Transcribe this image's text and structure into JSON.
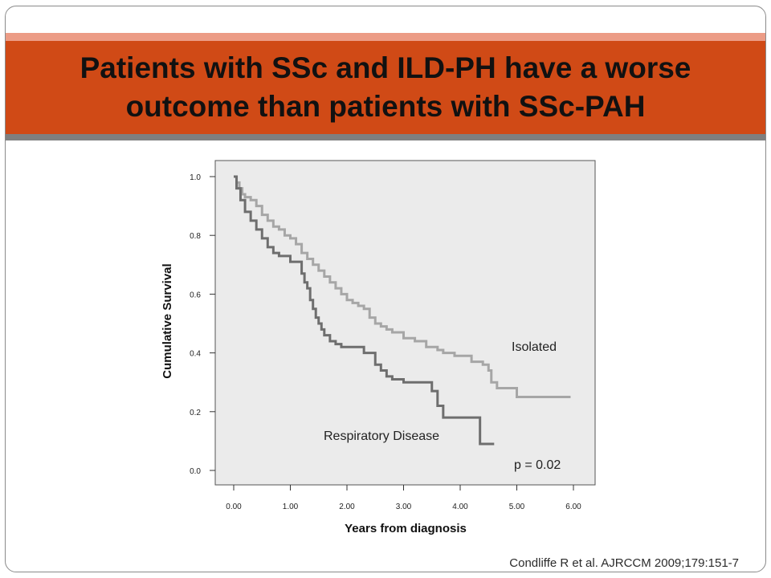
{
  "slide": {
    "title": "Patients with SSc and ILD-PH have a worse outcome than patients with SSc-PAH",
    "citation": "Condliffe R et al. AJRCCM 2009;179:151-7"
  },
  "colors": {
    "title_band": "#d04a16",
    "title_band_light": "#ec9c86",
    "separator": "#7f7f7f",
    "plot_background": "#ebebeb",
    "isolated_line": "#a6a6a6",
    "respiratory_line": "#6e6e6e"
  },
  "chart_data": {
    "type": "line",
    "step": true,
    "xlabel": "Years from diagnosis",
    "ylabel": "Cumulative Survival",
    "xlim": [
      0,
      6
    ],
    "ylim": [
      0,
      1
    ],
    "x_ticks": [
      "0.00",
      "1.00",
      "2.00",
      "3.00",
      "4.00",
      "5.00",
      "6.00"
    ],
    "y_ticks": [
      "0.0",
      "0.2",
      "0.4",
      "0.6",
      "0.8",
      "1.0"
    ],
    "annotations": [
      "p = 0.02"
    ],
    "series": [
      {
        "name": "Isolated",
        "x": [
          0,
          0.05,
          0.1,
          0.15,
          0.2,
          0.3,
          0.4,
          0.5,
          0.6,
          0.7,
          0.8,
          0.9,
          1.0,
          1.1,
          1.2,
          1.3,
          1.4,
          1.5,
          1.6,
          1.7,
          1.8,
          1.9,
          2.0,
          2.1,
          2.2,
          2.3,
          2.4,
          2.5,
          2.6,
          2.7,
          2.8,
          3.0,
          3.2,
          3.4,
          3.6,
          3.7,
          3.9,
          4.2,
          4.4,
          4.5,
          4.55,
          4.65,
          4.8,
          5.0,
          5.95
        ],
        "y": [
          1.0,
          0.98,
          0.96,
          0.94,
          0.93,
          0.92,
          0.9,
          0.87,
          0.85,
          0.83,
          0.82,
          0.8,
          0.79,
          0.77,
          0.74,
          0.72,
          0.7,
          0.68,
          0.66,
          0.64,
          0.62,
          0.6,
          0.58,
          0.57,
          0.56,
          0.55,
          0.52,
          0.5,
          0.49,
          0.48,
          0.47,
          0.45,
          0.44,
          0.42,
          0.41,
          0.4,
          0.39,
          0.37,
          0.36,
          0.34,
          0.3,
          0.28,
          0.28,
          0.25,
          0.25
        ]
      },
      {
        "name": "Respiratory Disease",
        "x": [
          0,
          0.05,
          0.12,
          0.2,
          0.3,
          0.4,
          0.5,
          0.6,
          0.7,
          0.8,
          1.0,
          1.2,
          1.25,
          1.3,
          1.35,
          1.4,
          1.45,
          1.5,
          1.55,
          1.6,
          1.7,
          1.8,
          1.9,
          2.0,
          2.3,
          2.5,
          2.6,
          2.7,
          2.8,
          3.0,
          3.5,
          3.6,
          3.7,
          4.35,
          4.45,
          4.6
        ],
        "y": [
          1.0,
          0.96,
          0.92,
          0.88,
          0.85,
          0.82,
          0.79,
          0.76,
          0.74,
          0.73,
          0.71,
          0.67,
          0.64,
          0.62,
          0.58,
          0.55,
          0.52,
          0.5,
          0.48,
          0.46,
          0.44,
          0.43,
          0.42,
          0.42,
          0.4,
          0.36,
          0.34,
          0.32,
          0.31,
          0.3,
          0.27,
          0.22,
          0.18,
          0.09,
          0.09,
          0.09
        ]
      }
    ]
  }
}
